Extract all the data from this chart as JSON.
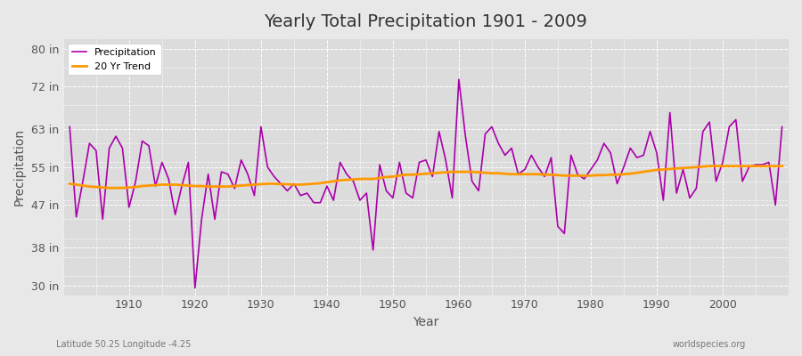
{
  "title": "Yearly Total Precipitation 1901 - 2009",
  "xlabel": "Year",
  "ylabel": "Precipitation",
  "left_label": "Latitude 50.25 Longitude -4.25",
  "right_label": "worldspecies.org",
  "years": [
    1901,
    1902,
    1903,
    1904,
    1905,
    1906,
    1907,
    1908,
    1909,
    1910,
    1911,
    1912,
    1913,
    1914,
    1915,
    1916,
    1917,
    1918,
    1919,
    1920,
    1921,
    1922,
    1923,
    1924,
    1925,
    1926,
    1927,
    1928,
    1929,
    1930,
    1931,
    1932,
    1933,
    1934,
    1935,
    1936,
    1937,
    1938,
    1939,
    1940,
    1941,
    1942,
    1943,
    1944,
    1945,
    1946,
    1947,
    1948,
    1949,
    1950,
    1951,
    1952,
    1953,
    1954,
    1955,
    1956,
    1957,
    1958,
    1959,
    1960,
    1961,
    1962,
    1963,
    1964,
    1965,
    1966,
    1967,
    1968,
    1969,
    1970,
    1971,
    1972,
    1973,
    1974,
    1975,
    1976,
    1977,
    1978,
    1979,
    1980,
    1981,
    1982,
    1983,
    1984,
    1985,
    1986,
    1987,
    1988,
    1989,
    1990,
    1991,
    1992,
    1993,
    1994,
    1995,
    1996,
    1997,
    1998,
    1999,
    2000,
    2001,
    2002,
    2003,
    2004,
    2005,
    2006,
    2007,
    2008,
    2009
  ],
  "precipitation": [
    63.5,
    44.5,
    52.0,
    60.0,
    58.5,
    44.0,
    59.0,
    61.5,
    59.0,
    46.5,
    52.0,
    60.5,
    59.5,
    51.0,
    56.0,
    52.5,
    45.0,
    51.0,
    56.0,
    29.5,
    44.0,
    53.5,
    44.0,
    54.0,
    53.5,
    50.5,
    56.5,
    53.5,
    49.0,
    63.5,
    55.0,
    53.0,
    51.5,
    50.0,
    51.5,
    49.0,
    49.5,
    47.5,
    47.5,
    51.0,
    48.0,
    56.0,
    53.5,
    52.0,
    48.0,
    49.5,
    37.5,
    55.5,
    50.0,
    48.5,
    56.0,
    49.5,
    48.5,
    56.0,
    56.5,
    53.0,
    62.5,
    56.5,
    48.5,
    73.5,
    61.5,
    52.0,
    50.0,
    62.0,
    63.5,
    60.0,
    57.5,
    59.0,
    53.5,
    54.5,
    57.5,
    55.0,
    53.0,
    57.0,
    42.5,
    41.0,
    57.5,
    53.5,
    52.5,
    54.5,
    56.5,
    60.0,
    58.0,
    51.5,
    55.0,
    59.0,
    57.0,
    57.5,
    62.5,
    58.0,
    48.0,
    66.5,
    49.5,
    54.5,
    48.5,
    50.5,
    62.5,
    64.5,
    52.0,
    56.0,
    63.5,
    65.0,
    52.0,
    55.0,
    55.5,
    55.5,
    56.0,
    47.0,
    63.5
  ],
  "trend": [
    51.5,
    51.3,
    51.1,
    50.9,
    50.8,
    50.7,
    50.6,
    50.6,
    50.6,
    50.7,
    50.8,
    51.0,
    51.1,
    51.2,
    51.3,
    51.3,
    51.3,
    51.2,
    51.1,
    51.0,
    51.0,
    50.9,
    50.9,
    50.9,
    50.9,
    51.0,
    51.1,
    51.2,
    51.3,
    51.4,
    51.5,
    51.5,
    51.4,
    51.4,
    51.3,
    51.3,
    51.4,
    51.5,
    51.6,
    51.8,
    52.0,
    52.2,
    52.3,
    52.4,
    52.5,
    52.5,
    52.5,
    52.7,
    52.9,
    53.0,
    53.2,
    53.4,
    53.4,
    53.5,
    53.6,
    53.7,
    53.8,
    53.9,
    54.0,
    54.0,
    54.0,
    54.0,
    53.9,
    53.8,
    53.7,
    53.7,
    53.6,
    53.5,
    53.5,
    53.5,
    53.5,
    53.5,
    53.4,
    53.4,
    53.3,
    53.2,
    53.2,
    53.2,
    53.2,
    53.2,
    53.3,
    53.3,
    53.4,
    53.4,
    53.5,
    53.6,
    53.8,
    54.0,
    54.2,
    54.4,
    54.5,
    54.6,
    54.7,
    54.8,
    54.9,
    55.0,
    55.1,
    55.2,
    55.2,
    55.2,
    55.2,
    55.2,
    55.2,
    55.2,
    55.2,
    55.2,
    55.2,
    55.2,
    55.2
  ],
  "precip_color": "#aa00aa",
  "trend_color": "#ff9900",
  "bg_color": "#e8e8e8",
  "plot_bg_color": "#dcdcdc",
  "grid_color": "#ffffff",
  "yticks": [
    30,
    38,
    47,
    55,
    63,
    72,
    80
  ],
  "ytick_labels": [
    "30 in",
    "38 in",
    "47 in",
    "55 in",
    "63 in",
    "72 in",
    "80 in"
  ],
  "xticks": [
    1910,
    1920,
    1930,
    1940,
    1950,
    1960,
    1970,
    1980,
    1990,
    2000
  ],
  "ylim": [
    28,
    82
  ],
  "xlim": [
    1900,
    2010
  ]
}
